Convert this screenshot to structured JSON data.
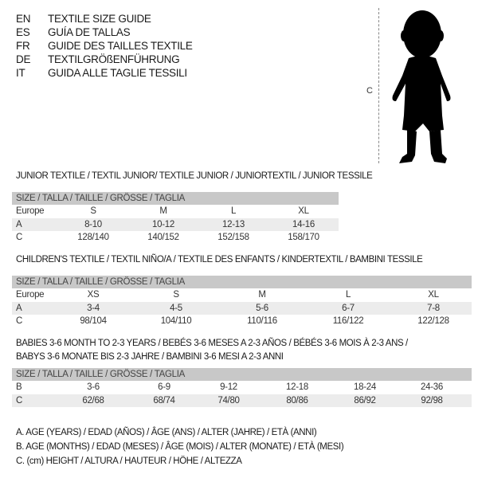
{
  "languages": [
    {
      "code": "EN",
      "text": "TEXTILE SIZE GUIDE"
    },
    {
      "code": "ES",
      "text": "GUÍA DE TALLAS"
    },
    {
      "code": "FR",
      "text": "GUIDE DES TAILLES TEXTILE"
    },
    {
      "code": "DE",
      "text": "TEXTILGRÖßENFÜHRUNG"
    },
    {
      "code": "IT",
      "text": "GUIDA ALLE TAGLIE TESSILI"
    }
  ],
  "figure": {
    "measure_label": "C"
  },
  "junior": {
    "title": "JUNIOR TEXTILE / TEXTIL JUNIOR/ TEXTILE JUNIOR / JUNIORTEXTIL / JUNIOR TESSILE",
    "header": "SIZE / TALLA / TAILLE / GRÖSSE / TAGLIA",
    "rows": [
      {
        "label": "Europe",
        "values": [
          "S",
          "M",
          "L",
          "XL"
        ]
      },
      {
        "label": "A",
        "values": [
          "8-10",
          "10-12",
          "12-13",
          "14-16"
        ]
      },
      {
        "label": "C",
        "values": [
          "128/140",
          "140/152",
          "152/158",
          "158/170"
        ]
      }
    ]
  },
  "children": {
    "title": "CHILDREN'S TEXTILE / TEXTIL NIÑO/A / TEXTILE DES ENFANTS / KINDERTEXTIL / BAMBINI TESSILE",
    "header": "SIZE / TALLA / TAILLE / GRÖSSE / TAGLIA",
    "rows": [
      {
        "label": "Europe",
        "values": [
          "XS",
          "S",
          "M",
          "L",
          "XL"
        ]
      },
      {
        "label": "A",
        "values": [
          "3-4",
          "4-5",
          "5-6",
          "6-7",
          "7-8"
        ]
      },
      {
        "label": "C",
        "values": [
          "98/104",
          "104/110",
          "110/116",
          "116/122",
          "122/128"
        ]
      }
    ]
  },
  "babies": {
    "title_line1": "BABIES 3-6 MONTH TO 2-3 YEARS / BEBÉS 3-6 MESES A 2-3 AÑOS / BÉBÉS 3-6 MOIS À 2-3 ANS /",
    "title_line2": "BABYS 3-6 MONATE BIS 2-3 JAHRE / BAMBINI 3-6 MESI A 2-3 ANNI",
    "header": "SIZE / TALLA / TAILLE / GRÖSSE / TAGLIA",
    "rows": [
      {
        "label": "B",
        "values": [
          "3-6",
          "6-9",
          "9-12",
          "12-18",
          "18-24",
          "24-36"
        ]
      },
      {
        "label": "C",
        "values": [
          "62/68",
          "68/74",
          "74/80",
          "80/86",
          "86/92",
          "92/98"
        ]
      }
    ]
  },
  "legend": [
    "A. AGE (YEARS) / EDAD (AÑOS) / ÂGE (ANS) / ALTER (JAHRE) / ETÀ (ANNI)",
    "B. AGE (MONTHS) / EDAD (MESES) / ÂGE (MOIS) / ALTER (MONATE) / ETÀ (MESI)",
    "C. (cm) HEIGHT / ALTURA / HAUTEUR / HÖHE / ALTEZZA"
  ]
}
